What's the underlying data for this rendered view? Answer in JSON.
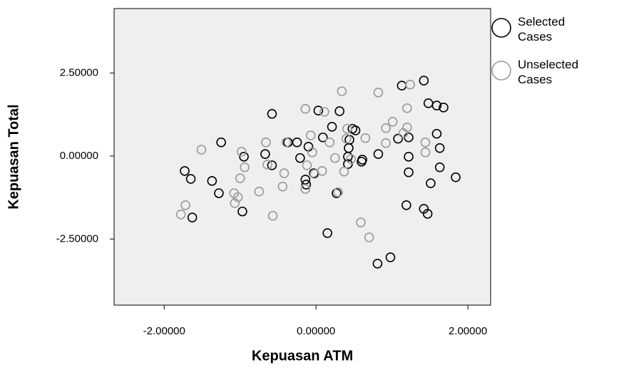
{
  "chart_data": {
    "type": "scatter",
    "x_label": "Kepuasan ATM",
    "y_label": "Kepuasan Total",
    "xlim": [
      -2.66,
      2.3
    ],
    "ylim": [
      -4.49,
      4.44
    ],
    "xticks": [
      {
        "value": -2,
        "label": "-2.00000"
      },
      {
        "value": 0,
        "label": "0.00000"
      },
      {
        "value": 2,
        "label": "2.00000"
      }
    ],
    "yticks": [
      {
        "value": 2.5,
        "label": "2.50000"
      },
      {
        "value": 0,
        "label": "0.00000"
      },
      {
        "value": -2.5,
        "label": "-2.50000"
      }
    ],
    "background": "#efefef",
    "series": [
      {
        "name": "Selected Cases",
        "color": "#000000",
        "x": [
          -1.73,
          -1.65,
          -1.63,
          -1.25,
          -1.37,
          -1.28,
          -0.97,
          -0.95,
          -0.67,
          -0.58,
          -0.58,
          -0.37,
          -0.25,
          -0.21,
          -0.13,
          -0.14,
          -0.1,
          -0.03,
          0.03,
          0.09,
          0.15,
          0.21,
          0.27,
          0.31,
          0.42,
          0.42,
          0.43,
          0.48,
          0.44,
          0.52,
          0.6,
          0.61,
          0.82,
          0.81,
          0.98,
          1.08,
          1.13,
          1.22,
          1.22,
          1.22,
          1.19,
          1.42,
          1.42,
          1.47,
          1.48,
          1.59,
          1.68,
          1.59,
          1.63,
          1.63,
          1.51,
          1.84
        ],
        "values": [
          -0.45,
          -0.69,
          -1.85,
          0.41,
          -0.75,
          -1.12,
          -1.67,
          -0.02,
          0.06,
          1.27,
          -0.28,
          0.41,
          0.41,
          -0.06,
          -0.86,
          -0.71,
          0.28,
          -0.52,
          1.37,
          0.56,
          -2.32,
          0.88,
          -1.12,
          1.35,
          -0.24,
          -0.02,
          0.24,
          0.82,
          0.49,
          0.77,
          -0.17,
          -0.11,
          0.06,
          -3.24,
          -3.05,
          0.52,
          2.12,
          -0.02,
          0.56,
          -0.49,
          -1.48,
          2.27,
          -1.59,
          -1.74,
          1.59,
          1.52,
          1.46,
          0.67,
          0.24,
          -0.34,
          -0.82,
          -0.64
        ]
      },
      {
        "name": "Unselected Cases",
        "color": "#999999",
        "x": [
          -1.78,
          -1.72,
          -1.51,
          -1.08,
          -1.07,
          -1.03,
          -0.98,
          -1.0,
          -0.94,
          -0.75,
          -0.64,
          -0.57,
          -0.66,
          -0.44,
          -0.42,
          -0.39,
          -0.14,
          -0.14,
          -0.12,
          -0.07,
          -0.05,
          -0.02,
          0.08,
          0.11,
          0.18,
          0.25,
          0.29,
          0.34,
          0.37,
          0.4,
          0.41,
          0.46,
          0.59,
          0.65,
          0.7,
          0.82,
          0.92,
          0.92,
          1.01,
          1.2,
          1.2,
          1.24,
          1.44,
          1.44,
          1.15
        ],
        "values": [
          -1.76,
          -1.48,
          0.19,
          -1.12,
          -1.42,
          -1.24,
          0.13,
          -0.67,
          -0.34,
          -1.07,
          -0.26,
          -1.8,
          0.41,
          -0.92,
          -0.52,
          0.41,
          1.42,
          -0.99,
          -0.28,
          0.62,
          0.11,
          -0.54,
          -0.45,
          1.33,
          0.41,
          -0.06,
          -1.09,
          1.95,
          -0.47,
          0.52,
          0.82,
          -0.09,
          -2.0,
          0.54,
          -2.45,
          1.91,
          0.39,
          0.84,
          1.03,
          1.44,
          0.86,
          2.15,
          0.41,
          0.11,
          0.69
        ]
      }
    ]
  }
}
